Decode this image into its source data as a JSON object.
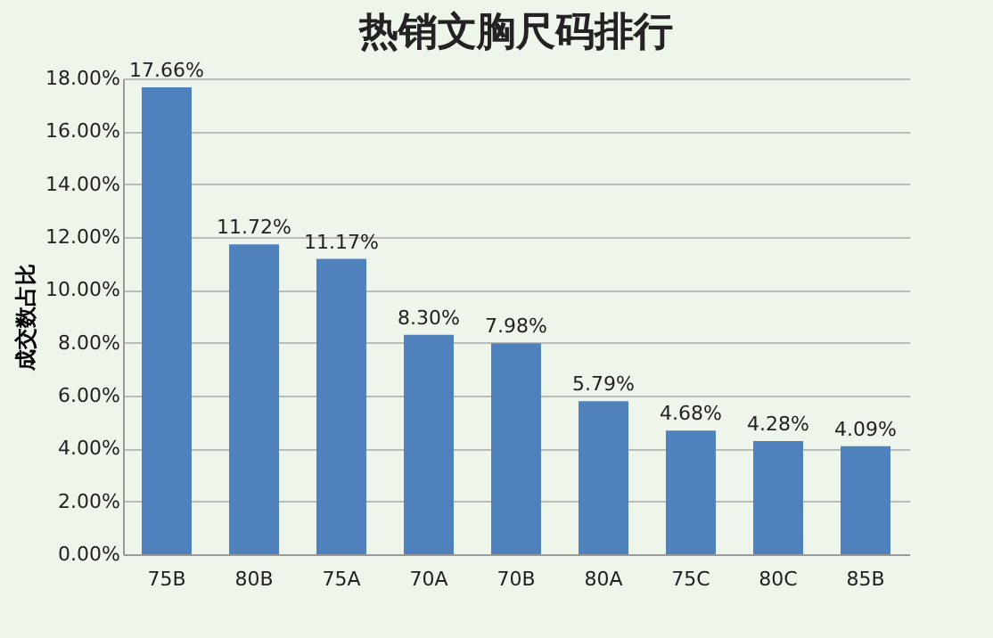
{
  "chart_data": {
    "type": "bar",
    "title": "热销文胸尺码排行",
    "ylabel": "成交数占比",
    "categories": [
      "75B",
      "80B",
      "75A",
      "70A",
      "70B",
      "80A",
      "75C",
      "80C",
      "85B"
    ],
    "values": [
      17.66,
      11.72,
      11.17,
      8.3,
      7.98,
      5.79,
      4.68,
      4.28,
      4.09
    ],
    "value_labels": [
      "17.66%",
      "11.72%",
      "11.17%",
      "8.30%",
      "7.98%",
      "5.79%",
      "4.68%",
      "4.28%",
      "4.09%"
    ],
    "color": "#4f81bd",
    "ylim": [
      0,
      18
    ],
    "yticks": [
      {
        "value": 0,
        "label": "0.00%"
      },
      {
        "value": 2,
        "label": "2.00%"
      },
      {
        "value": 4,
        "label": "4.00%"
      },
      {
        "value": 6,
        "label": "6.00%"
      },
      {
        "value": 8,
        "label": "8.00%"
      },
      {
        "value": 10,
        "label": "10.00%"
      },
      {
        "value": 12,
        "label": "12.00%"
      },
      {
        "value": 14,
        "label": "14.00%"
      },
      {
        "value": 16,
        "label": "16.00%"
      },
      {
        "value": 18,
        "label": "18.00%"
      }
    ],
    "grid": "y"
  }
}
